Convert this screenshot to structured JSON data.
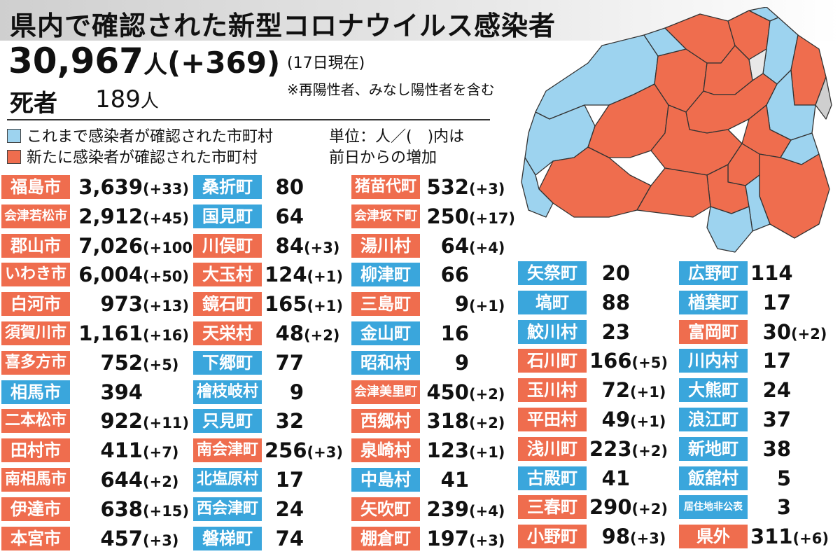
{
  "title": "県内で確認された新型コロナウイルス感染者",
  "total": {
    "count": "30,967",
    "unit": "人",
    "change": "(+369)"
  },
  "as_of": "(17日現在)",
  "note": "※再陽性者、みなし陽性者を含む",
  "deaths": {
    "label": "死者",
    "count": "189",
    "unit": "人"
  },
  "legend": [
    {
      "label": "これまで感染者が確認された市町村",
      "color": "#9dd3ef"
    },
    {
      "label": "新たに感染者が確認された市町村",
      "color": "#ef6d4e"
    }
  ],
  "unit_note": [
    "単位：人／(　)内は",
    "前日からの増加"
  ],
  "colors": {
    "new": "#ef6d4e",
    "prev": "#3aa6dc",
    "map_new": "#ef6d4e",
    "map_prev": "#9dd3ef",
    "map_none": "#e8e8e8"
  },
  "columns": [
    [
      {
        "name": "福島市",
        "count": "3,639",
        "change": "(+33)",
        "status": "new"
      },
      {
        "name": "会津若松市",
        "count": "2,912",
        "change": "(+45)",
        "status": "new"
      },
      {
        "name": "郡山市",
        "count": "7,026",
        "change": "(+100)",
        "status": "new"
      },
      {
        "name": "いわき市",
        "count": "6,004",
        "change": "(+50)",
        "status": "new"
      },
      {
        "name": "白河市",
        "count": "973",
        "change": "(+13)",
        "status": "new"
      },
      {
        "name": "須賀川市",
        "count": "1,161",
        "change": "(+16)",
        "status": "new"
      },
      {
        "name": "喜多方市",
        "count": "752",
        "change": "(+5)",
        "status": "new"
      },
      {
        "name": "相馬市",
        "count": "394",
        "change": "",
        "status": "prev"
      },
      {
        "name": "二本松市",
        "count": "922",
        "change": "(+11)",
        "status": "new"
      },
      {
        "name": "田村市",
        "count": "411",
        "change": "(+7)",
        "status": "new"
      },
      {
        "name": "南相馬市",
        "count": "644",
        "change": "(+2)",
        "status": "new"
      },
      {
        "name": "伊達市",
        "count": "638",
        "change": "(+15)",
        "status": "new"
      },
      {
        "name": "本宮市",
        "count": "457",
        "change": "(+3)",
        "status": "new"
      }
    ],
    [
      {
        "name": "桑折町",
        "count": "80",
        "change": "",
        "status": "prev"
      },
      {
        "name": "国見町",
        "count": "64",
        "change": "",
        "status": "prev"
      },
      {
        "name": "川俣町",
        "count": "84",
        "change": "(+3)",
        "status": "new"
      },
      {
        "name": "大玉村",
        "count": "124",
        "change": "(+1)",
        "status": "new"
      },
      {
        "name": "鏡石町",
        "count": "165",
        "change": "(+1)",
        "status": "new"
      },
      {
        "name": "天栄村",
        "count": "48",
        "change": "(+2)",
        "status": "new"
      },
      {
        "name": "下郷町",
        "count": "77",
        "change": "",
        "status": "prev"
      },
      {
        "name": "檜枝岐村",
        "count": "9",
        "change": "",
        "status": "prev"
      },
      {
        "name": "只見町",
        "count": "32",
        "change": "",
        "status": "prev"
      },
      {
        "name": "南会津町",
        "count": "256",
        "change": "(+3)",
        "status": "new"
      },
      {
        "name": "北塩原村",
        "count": "17",
        "change": "",
        "status": "prev"
      },
      {
        "name": "西会津町",
        "count": "24",
        "change": "",
        "status": "prev"
      },
      {
        "name": "磐梯町",
        "count": "74",
        "change": "",
        "status": "prev"
      }
    ],
    [
      {
        "name": "猪苗代町",
        "count": "532",
        "change": "(+3)",
        "status": "new"
      },
      {
        "name": "会津坂下町",
        "count": "250",
        "change": "(+17)",
        "status": "new"
      },
      {
        "name": "湯川村",
        "count": "64",
        "change": "(+4)",
        "status": "new"
      },
      {
        "name": "柳津町",
        "count": "66",
        "change": "",
        "status": "prev"
      },
      {
        "name": "三島町",
        "count": "9",
        "change": "(+1)",
        "status": "new"
      },
      {
        "name": "金山町",
        "count": "16",
        "change": "",
        "status": "prev"
      },
      {
        "name": "昭和村",
        "count": "9",
        "change": "",
        "status": "prev"
      },
      {
        "name": "会津美里町",
        "count": "450",
        "change": "(+2)",
        "status": "new"
      },
      {
        "name": "西郷村",
        "count": "318",
        "change": "(+2)",
        "status": "new"
      },
      {
        "name": "泉崎村",
        "count": "123",
        "change": "(+1)",
        "status": "new"
      },
      {
        "name": "中島村",
        "count": "41",
        "change": "",
        "status": "prev"
      },
      {
        "name": "矢吹町",
        "count": "239",
        "change": "(+4)",
        "status": "new"
      },
      {
        "name": "棚倉町",
        "count": "197",
        "change": "(+3)",
        "status": "new"
      }
    ],
    [
      {
        "name": "矢祭町",
        "count": "20",
        "change": "",
        "status": "prev"
      },
      {
        "name": "塙町",
        "count": "88",
        "change": "",
        "status": "prev"
      },
      {
        "name": "鮫川村",
        "count": "23",
        "change": "",
        "status": "prev"
      },
      {
        "name": "石川町",
        "count": "166",
        "change": "(+5)",
        "status": "new"
      },
      {
        "name": "玉川村",
        "count": "72",
        "change": "(+1)",
        "status": "new"
      },
      {
        "name": "平田村",
        "count": "49",
        "change": "(+1)",
        "status": "new"
      },
      {
        "name": "浅川町",
        "count": "223",
        "change": "(+2)",
        "status": "new"
      },
      {
        "name": "古殿町",
        "count": "41",
        "change": "",
        "status": "prev"
      },
      {
        "name": "三春町",
        "count": "290",
        "change": "(+2)",
        "status": "new"
      },
      {
        "name": "小野町",
        "count": "98",
        "change": "(+3)",
        "status": "new"
      }
    ],
    [
      {
        "name": "広野町",
        "count": "114",
        "change": "",
        "status": "prev"
      },
      {
        "name": "楢葉町",
        "count": "17",
        "change": "",
        "status": "prev"
      },
      {
        "name": "富岡町",
        "count": "30",
        "change": "(+2)",
        "status": "new"
      },
      {
        "name": "川内村",
        "count": "17",
        "change": "",
        "status": "prev"
      },
      {
        "name": "大熊町",
        "count": "24",
        "change": "",
        "status": "prev"
      },
      {
        "name": "浪江町",
        "count": "37",
        "change": "",
        "status": "prev"
      },
      {
        "name": "新地町",
        "count": "38",
        "change": "",
        "status": "prev"
      },
      {
        "name": "飯舘村",
        "count": "5",
        "change": "",
        "status": "prev"
      },
      {
        "name": "居住地非公表",
        "count": "3",
        "change": "",
        "status": "prev"
      },
      {
        "name": "県外",
        "count": "311",
        "change": "(+6)",
        "status": "new"
      }
    ]
  ]
}
